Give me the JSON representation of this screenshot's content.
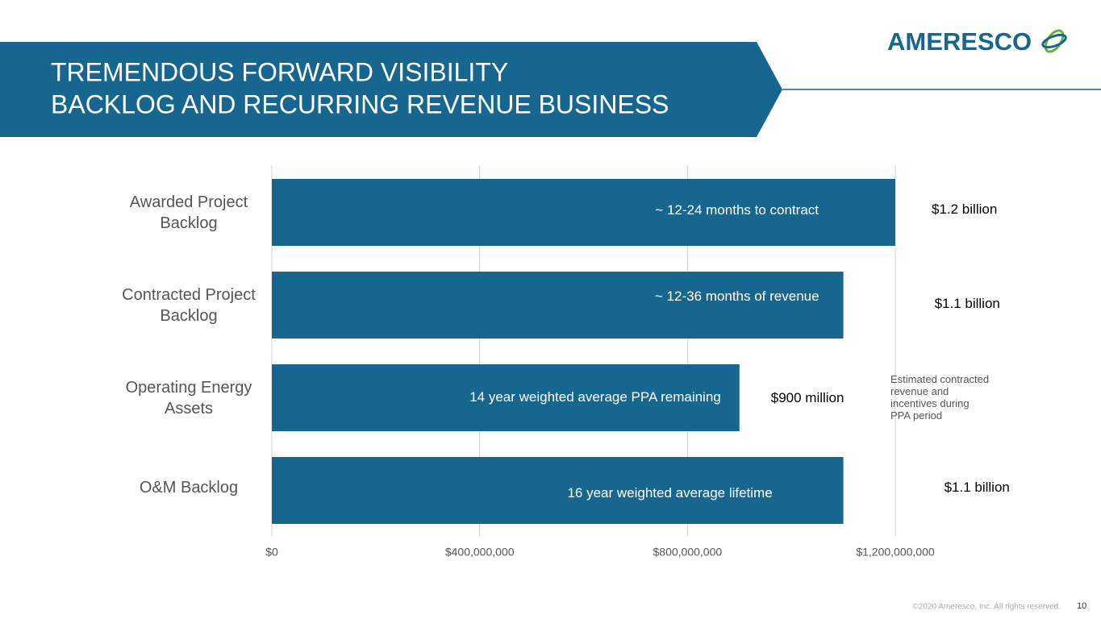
{
  "header": {
    "title_lines": [
      "TREMENDOUS FORWARD VISIBILITY",
      "BACKLOG AND RECURRING REVENUE BUSINESS"
    ],
    "logo": "AMERESCO"
  },
  "chart_data": {
    "type": "bar",
    "orientation": "horizontal",
    "categories": [
      "Awarded Project Backlog",
      "Contracted Project Backlog",
      "Operating Energy Assets",
      "O&M Backlog"
    ],
    "values": [
      1200000000,
      1100000000,
      900000000,
      1100000000
    ],
    "value_labels": [
      "$1.2 billion",
      "$1.1 billion",
      "$900 million",
      "$1.1 billion"
    ],
    "bar_notes": [
      "~ 12-24 months to contract",
      "~ 12-36 months of revenue",
      "14 year weighted average PPA remaining",
      "16 year weighted average lifetime"
    ],
    "annotation": "Estimated contracted revenue and incentives during PPA period",
    "color": "#17668f",
    "xlim": [
      0,
      1200000000
    ],
    "xticks": [
      {
        "value": 0,
        "label": "$0"
      },
      {
        "value": 400000000,
        "label": "$400,000,000"
      },
      {
        "value": 800000000,
        "label": "$800,000,000"
      },
      {
        "value": 1200000000,
        "label": "$1,200,000,000"
      }
    ],
    "grid": true
  },
  "footer": {
    "copyright": "©2020 Ameresco, Inc. All rights reserved.",
    "page": "10"
  }
}
